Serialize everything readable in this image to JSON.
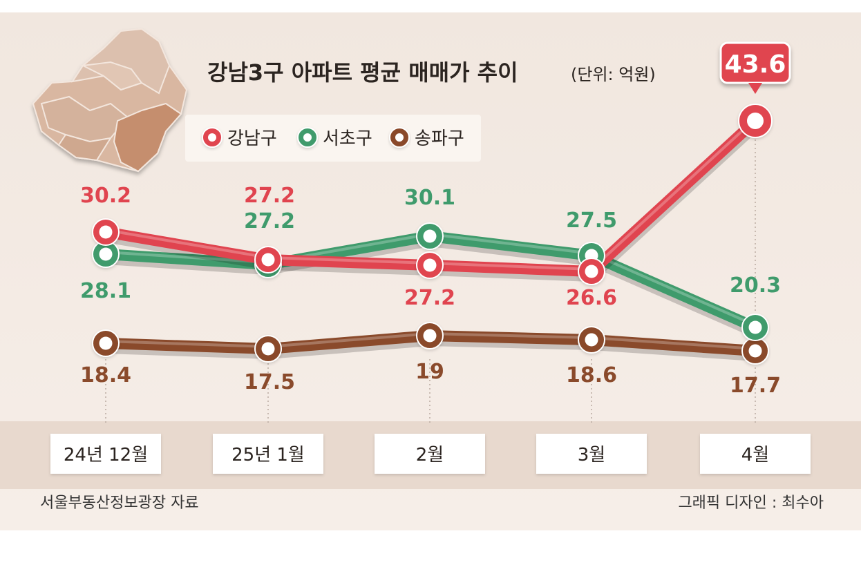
{
  "chart_data": {
    "type": "line",
    "title": "강남3구 아파트 평균 매매가 추이",
    "unit": "(단위: 억원)",
    "categories": [
      "24년 12월",
      "25년 1월",
      "2월",
      "3월",
      "4월"
    ],
    "series": [
      {
        "name": "강남구",
        "values": [
          30.2,
          27.2,
          27.2,
          26.6,
          43.6
        ],
        "color": "#e0444f"
      },
      {
        "name": "서초구",
        "values": [
          28.1,
          27.2,
          30.1,
          27.5,
          20.3
        ],
        "color": "#3f9b6c"
      },
      {
        "name": "송파구",
        "values": [
          18.4,
          17.5,
          19,
          18.6,
          17.7
        ],
        "color": "#8a4a2b"
      }
    ],
    "legend_position": "top",
    "grid": false
  },
  "source": "서울부동산정보광장 자료",
  "credit": "그래픽 디자인 : 최수아",
  "colors": {
    "background": "#f4ebe4",
    "band": "#eadbd0",
    "tick_box": "#ffffff",
    "callout": "#e0444f"
  },
  "icons": {
    "map": "seoul-district-map-icon"
  }
}
